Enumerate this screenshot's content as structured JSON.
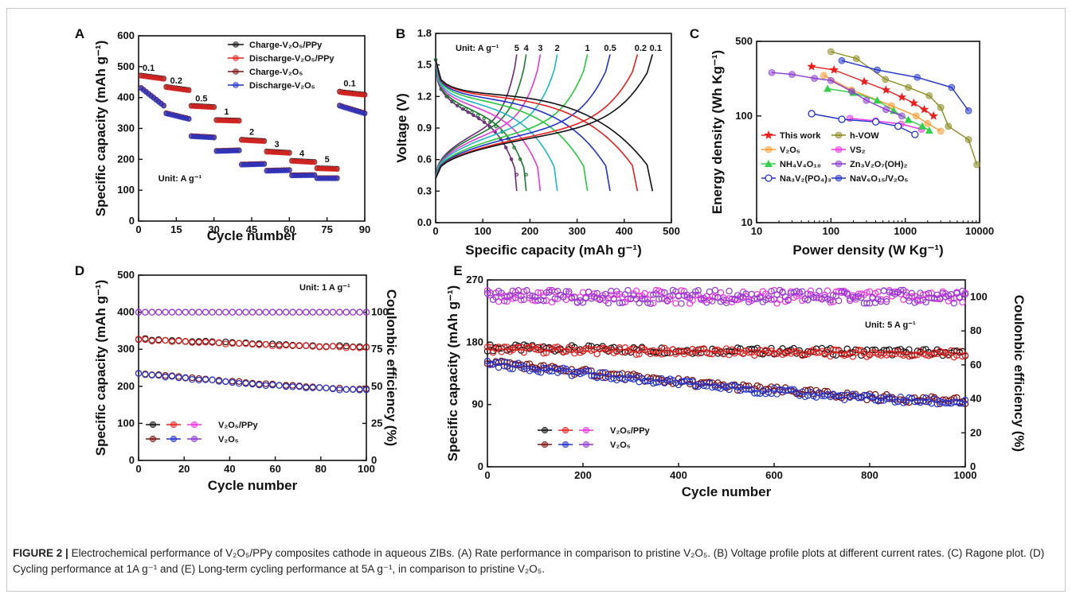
{
  "caption": {
    "label": "FIGURE 2 |",
    "text": "Electrochemical performance of V₂O₅/PPy composites cathode in aqueous ZIBs. (A) Rate performance in comparison to pristine V₂O₅. (B) Voltage profile plots at different current rates. (C) Ragone plot. (D) Cycling performance at 1A g⁻¹ and (E) Long-term cycling performance at 5A g⁻¹, in comparison to pristine V₂O₅."
  },
  "chart_data": [
    {
      "panel": "A",
      "type": "scatter",
      "xlabel": "Cycle number",
      "ylabel": "Specific capacity (mAh g⁻¹)",
      "xlim": [
        0,
        90
      ],
      "ylim": [
        0,
        600
      ],
      "xticks": [
        0,
        15,
        30,
        45,
        60,
        75,
        90
      ],
      "yticks": [
        0,
        100,
        200,
        300,
        400,
        500,
        600
      ],
      "annotation": "Unit: A g⁻¹",
      "rate_labels": [
        {
          "text": "0.1",
          "x": 4,
          "y": 487
        },
        {
          "text": "0.2",
          "x": 15,
          "y": 445
        },
        {
          "text": "0.5",
          "x": 25,
          "y": 387
        },
        {
          "text": "1",
          "x": 35,
          "y": 345
        },
        {
          "text": "2",
          "x": 45,
          "y": 280
        },
        {
          "text": "3",
          "x": 55,
          "y": 240
        },
        {
          "text": "4",
          "x": 65,
          "y": 210
        },
        {
          "text": "5",
          "x": 75,
          "y": 190
        },
        {
          "text": "0.1",
          "x": 84,
          "y": 437
        }
      ],
      "series": [
        {
          "name": "Charge-V₂O₅/PPy",
          "color": "#111111",
          "segments": [
            [
              1,
              10,
              472,
              462
            ],
            [
              11,
              20,
              435,
              425
            ],
            [
              21,
              30,
              374,
              370
            ],
            [
              31,
              40,
              328,
              326
            ],
            [
              41,
              50,
              264,
              260
            ],
            [
              51,
              60,
              226,
              222
            ],
            [
              61,
              70,
              196,
              192
            ],
            [
              71,
              79,
              172,
              170
            ],
            [
              80,
              80,
              420,
              420
            ],
            [
              81,
              90,
              418,
              410
            ]
          ]
        },
        {
          "name": "Discharge-V₂O₅/PPy",
          "color": "#e8201e",
          "segments": [
            [
              1,
              10,
              470,
              460
            ],
            [
              11,
              20,
              433,
              423
            ],
            [
              21,
              30,
              372,
              368
            ],
            [
              31,
              40,
              326,
              324
            ],
            [
              41,
              50,
              262,
              258
            ],
            [
              51,
              60,
              224,
              220
            ],
            [
              61,
              70,
              194,
              190
            ],
            [
              71,
              79,
              170,
              168
            ],
            [
              80,
              80,
              418,
              418
            ],
            [
              81,
              90,
              416,
              408
            ]
          ]
        },
        {
          "name": "Charge-V₂O₅",
          "color": "#7b1010",
          "segments": [
            [
              1,
              10,
              432,
              375
            ],
            [
              11,
              20,
              350,
              332
            ],
            [
              21,
              30,
              276,
              272
            ],
            [
              31,
              40,
              228,
              230
            ],
            [
              41,
              50,
              184,
              186
            ],
            [
              51,
              60,
              164,
              166
            ],
            [
              61,
              70,
              149,
              150
            ],
            [
              71,
              79,
              140,
              140
            ],
            [
              80,
              80,
              375,
              375
            ],
            [
              81,
              90,
              372,
              350
            ]
          ]
        },
        {
          "name": "Discharge-V₂O₅",
          "color": "#2233cc",
          "segments": [
            [
              1,
              10,
              430,
              373
            ],
            [
              11,
              20,
              348,
              330
            ],
            [
              21,
              30,
              274,
              270
            ],
            [
              31,
              40,
              226,
              228
            ],
            [
              41,
              50,
              182,
              184
            ],
            [
              51,
              60,
              162,
              164
            ],
            [
              61,
              70,
              147,
              148
            ],
            [
              71,
              79,
              138,
              138
            ],
            [
              80,
              80,
              373,
              373
            ],
            [
              81,
              90,
              370,
              348
            ]
          ]
        }
      ]
    },
    {
      "panel": "B",
      "type": "line",
      "xlabel": "Specific capacity (mAh g⁻¹)",
      "ylabel": "Voltage (V)",
      "xlim": [
        0,
        500
      ],
      "ylim": [
        0,
        1.8
      ],
      "xticks": [
        0,
        100,
        200,
        300,
        400,
        500
      ],
      "yticks": [
        0.0,
        0.3,
        0.6,
        0.9,
        1.2,
        1.5,
        1.8
      ],
      "annotation": "Unit: A g⁻¹",
      "rate_labels": [
        "5",
        "4",
        "3",
        "2",
        "1",
        "0.5",
        "0.2",
        "0.1"
      ],
      "series": [
        {
          "name": "5",
          "color": "#6b2a7a",
          "capacity": 172
        },
        {
          "name": "4",
          "color": "#1e7a2e",
          "capacity": 192
        },
        {
          "name": "3",
          "color": "#e23bd6",
          "capacity": 222
        },
        {
          "name": "2",
          "color": "#1fb7c8",
          "capacity": 258
        },
        {
          "name": "1",
          "color": "#27c83d",
          "capacity": 322
        },
        {
          "name": "0.5",
          "color": "#2233cc",
          "capacity": 370
        },
        {
          "name": "0.2",
          "color": "#e8201e",
          "capacity": 428
        },
        {
          "name": "0.1",
          "color": "#111111",
          "capacity": 460
        }
      ]
    },
    {
      "panel": "C",
      "type": "scatter",
      "xscale": "log",
      "yscale": "log",
      "xlabel": "Power density (W Kg⁻¹)",
      "ylabel": "Energy density (Wh Kg⁻¹)",
      "xlim": [
        10,
        10000
      ],
      "ylim": [
        10,
        500
      ],
      "xticks": [
        "10",
        "100",
        "1000",
        "10000"
      ],
      "yticks": [
        "10",
        "100",
        "500"
      ],
      "series": [
        {
          "name": "This work",
          "color": "#e8201e",
          "marker": "star",
          "points": [
            [
              55,
              290
            ],
            [
              110,
              270
            ],
            [
              280,
              210
            ],
            [
              550,
              175
            ],
            [
              900,
              150
            ],
            [
              1300,
              132
            ],
            [
              1800,
              115
            ],
            [
              2400,
              100
            ]
          ]
        },
        {
          "name": "h-VOW",
          "color": "#8a8a1e",
          "marker": "circle",
          "points": [
            [
              100,
              400
            ],
            [
              220,
              345
            ],
            [
              540,
              220
            ],
            [
              1100,
              185
            ],
            [
              2100,
              155
            ],
            [
              3000,
              120
            ],
            [
              3800,
              80
            ],
            [
              7100,
              60
            ],
            [
              9200,
              35
            ]
          ]
        },
        {
          "name": "V₂O₅",
          "color": "#ff9a2e",
          "marker": "circle",
          "points": [
            [
              80,
              240
            ],
            [
              190,
              175
            ],
            [
              650,
              125
            ],
            [
              1400,
              100
            ],
            [
              2000,
              85
            ],
            [
              3000,
              72
            ]
          ]
        },
        {
          "name": "VS₂",
          "color": "#ee33e0",
          "marker": "circle",
          "points": [
            [
              180,
              95
            ],
            [
              400,
              90
            ],
            [
              880,
              84
            ],
            [
              1650,
              75
            ]
          ]
        },
        {
          "name": "NH₄V₄O₁₀",
          "color": "#33d14a",
          "marker": "triangle",
          "points": [
            [
              90,
              180
            ],
            [
              200,
              165
            ],
            [
              420,
              140
            ],
            [
              700,
              112
            ],
            [
              1100,
              92
            ],
            [
              1700,
              80
            ],
            [
              2100,
              73
            ]
          ]
        },
        {
          "name": "Zn₃V₂O₇(OH)₂",
          "color": "#8d3bd1",
          "marker": "circle",
          "points": [
            [
              16,
              255
            ],
            [
              30,
              245
            ],
            [
              60,
              225
            ],
            [
              100,
              215
            ],
            [
              190,
              170
            ],
            [
              300,
              140
            ],
            [
              550,
              115
            ],
            [
              900,
              100
            ]
          ]
        },
        {
          "name": "Na₃V₂(PO₄)₃",
          "color": "#2233cc",
          "marker": "open-circle",
          "points": [
            [
              55,
              105
            ],
            [
              140,
              93
            ],
            [
              400,
              88
            ],
            [
              800,
              80
            ],
            [
              1350,
              67
            ]
          ]
        },
        {
          "name": "NaV₆O₁₅/V₂O₅",
          "color": "#2233cc",
          "marker": "circle",
          "points": [
            [
              140,
              330
            ],
            [
              420,
              270
            ],
            [
              1450,
              230
            ],
            [
              4200,
              185
            ],
            [
              7100,
              112
            ]
          ]
        }
      ]
    },
    {
      "panel": "D",
      "type": "scatter",
      "xlabel": "Cycle number",
      "ylabel": "Specific capacity (mAh g⁻¹)",
      "y2label": "Coulonbic efficiency (%)",
      "xlim": [
        0,
        100
      ],
      "ylim": [
        0,
        500
      ],
      "y2lim": [
        0,
        125
      ],
      "xticks": [
        0,
        20,
        40,
        60,
        80,
        100
      ],
      "yticks": [
        0,
        100,
        200,
        300,
        400,
        500
      ],
      "y2ticks": [
        0,
        25,
        50,
        75,
        100
      ],
      "annotation": "Unit: 1 A g⁻¹",
      "legend": [
        "V₂O₅/PPy",
        "V₂O₅"
      ],
      "series": [
        {
          "name": "V₂O₅/PPy charge",
          "color": "#111111",
          "axis": "left",
          "start": 328,
          "end": 307
        },
        {
          "name": "V₂O₅/PPy discharge",
          "color": "#e8201e",
          "axis": "left",
          "start": 326,
          "end": 305
        },
        {
          "name": "V₂O₅/PPy efficiency",
          "color": "#ee33e0",
          "axis": "right",
          "start": 100,
          "end": 100
        },
        {
          "name": "V₂O₅ charge",
          "color": "#7b1010",
          "axis": "left",
          "start": 236,
          "end": 192
        },
        {
          "name": "V₂O₅ discharge",
          "color": "#2233cc",
          "axis": "left",
          "start": 234,
          "end": 190
        },
        {
          "name": "V₂O₅ efficiency",
          "color": "#8d3bd1",
          "axis": "right",
          "start": 100,
          "end": 100
        }
      ]
    },
    {
      "panel": "E",
      "type": "scatter",
      "xlabel": "Cycle number",
      "ylabel": "Specific capacity (mAh g⁻¹)",
      "y2label": "Coulonbic efficiency (%)",
      "xlim": [
        0,
        1000
      ],
      "ylim": [
        0,
        270
      ],
      "y2lim": [
        0,
        110
      ],
      "xticks": [
        0,
        200,
        400,
        600,
        800,
        1000
      ],
      "yticks": [
        0,
        90,
        180,
        270
      ],
      "y2ticks": [
        0,
        20,
        40,
        60,
        80,
        100
      ],
      "annotation": "Unit: 5 A g⁻¹",
      "legend": [
        "V₂O₅/PPy",
        "V₂O₅"
      ],
      "series": [
        {
          "name": "V₂O₅/PPy charge",
          "color": "#111111",
          "axis": "left",
          "start": 172,
          "end": 165
        },
        {
          "name": "V₂O₅/PPy discharge",
          "color": "#e8201e",
          "axis": "left",
          "start": 170,
          "end": 163
        },
        {
          "name": "V₂O₅/PPy efficiency",
          "color": "#ee33e0",
          "axis": "right",
          "start": 100,
          "end": 100
        },
        {
          "name": "V₂O₅ charge",
          "color": "#7b1010",
          "axis": "left",
          "start": 152,
          "end": 95
        },
        {
          "name": "V₂O₅ discharge",
          "color": "#2233cc",
          "axis": "left",
          "start": 150,
          "end": 93
        },
        {
          "name": "V₂O₅ efficiency",
          "color": "#8d3bd1",
          "axis": "right",
          "start": 100,
          "end": 100
        }
      ]
    }
  ]
}
